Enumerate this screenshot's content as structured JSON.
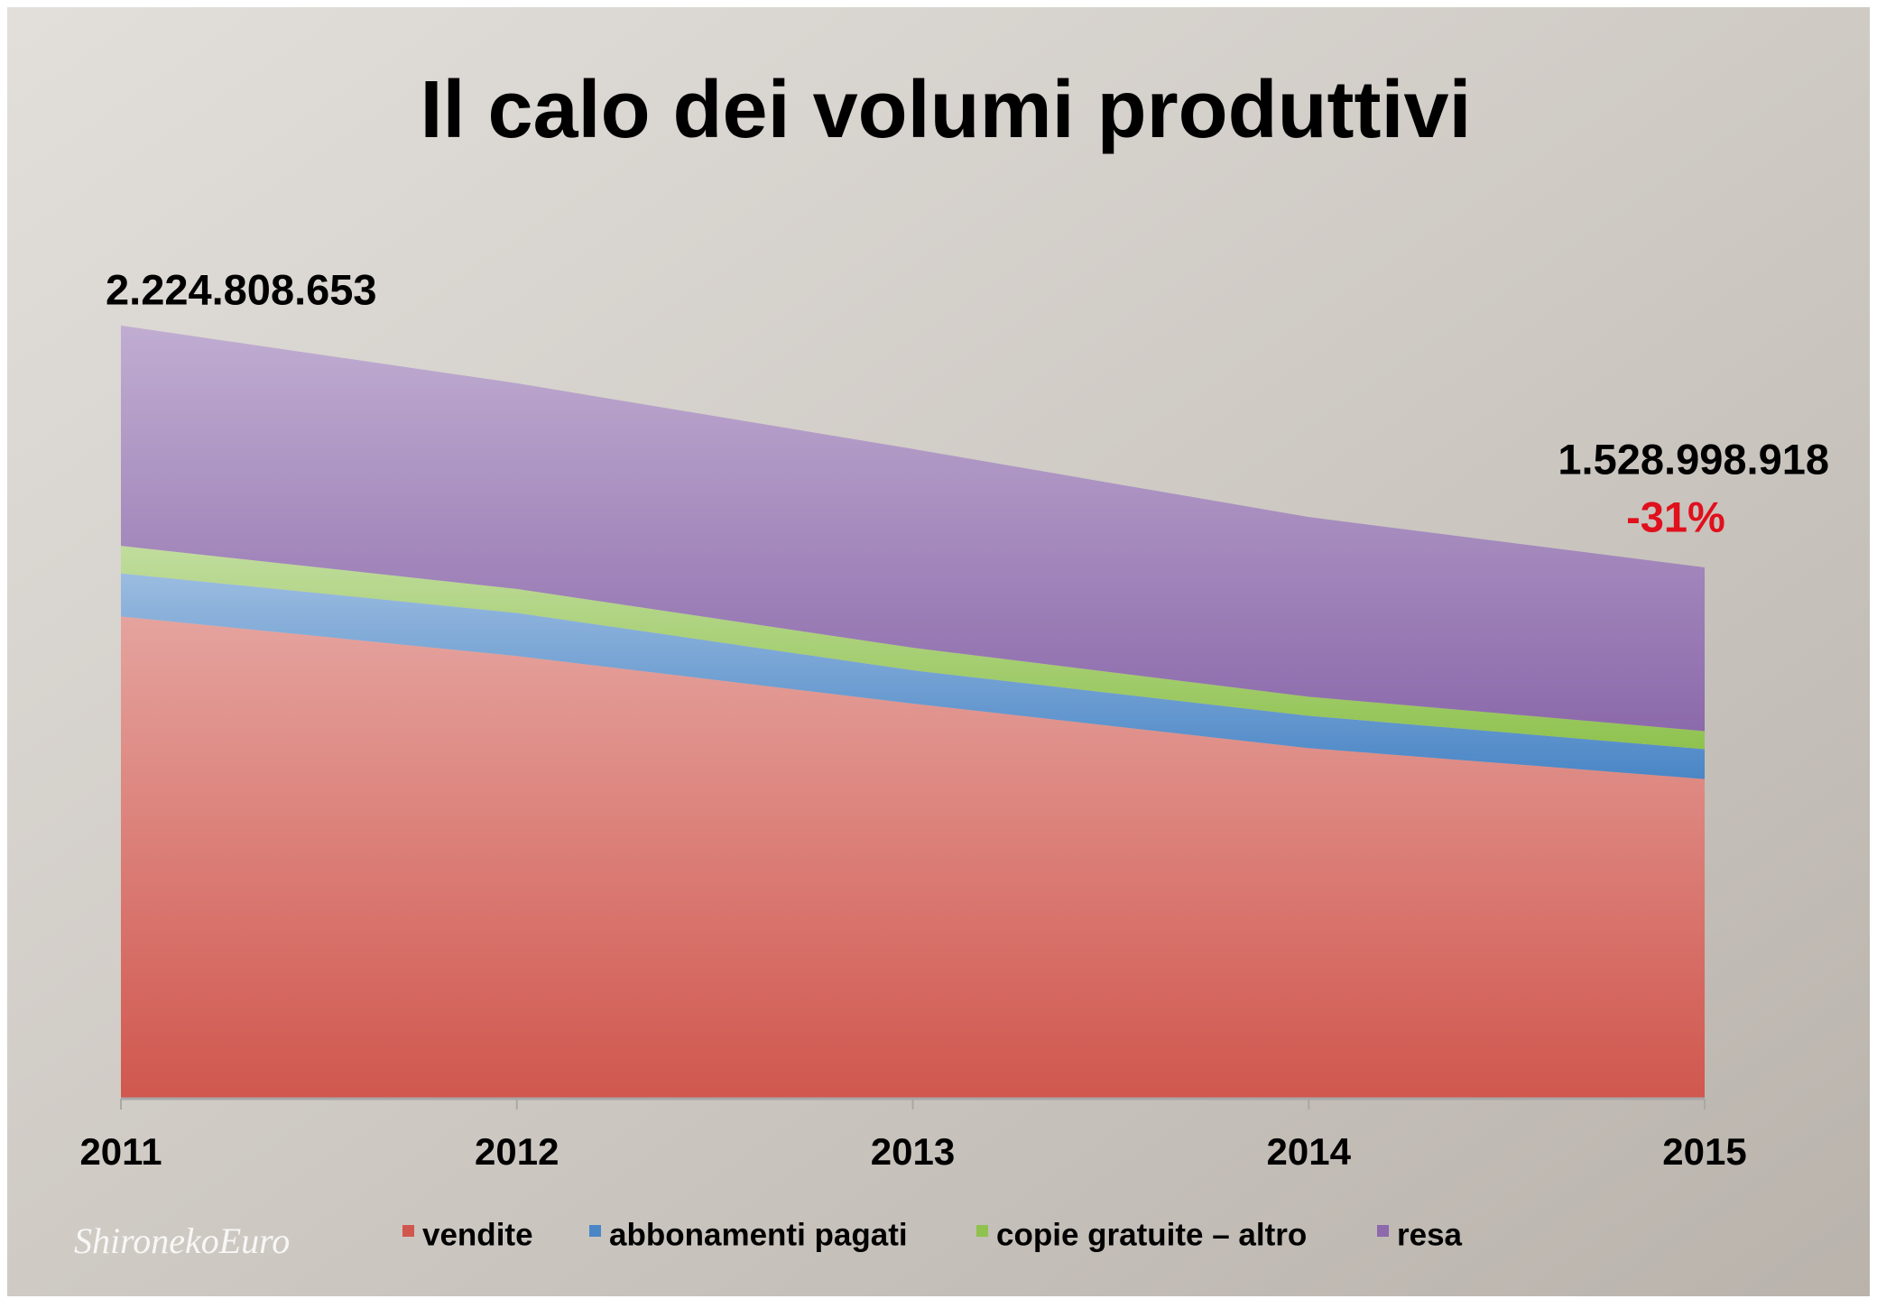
{
  "chart_data": {
    "type": "stacked-area",
    "title": "Il calo dei volumi produttivi",
    "categories": [
      "2011",
      "2012",
      "2013",
      "2014",
      "2015"
    ],
    "series": [
      {
        "name": "vendite",
        "color": "#d0574e",
        "values": [
          1388000000,
          1274000000,
          1137000000,
          1009000000,
          920000000
        ]
      },
      {
        "name": "abbonamenti pagati",
        "color": "#4a86c6",
        "values": [
          124000000,
          124000000,
          96000000,
          93000000,
          86000000
        ]
      },
      {
        "name": "copie gratuite – altro",
        "color": "#8fc24f",
        "values": [
          79000000,
          69000000,
          65000000,
          55000000,
          52000000
        ]
      },
      {
        "name": "resa",
        "color": "#8c6aab",
        "values": [
          634000000,
          592000000,
          572000000,
          517000000,
          471000000
        ]
      }
    ],
    "ylim": [
      0,
      2500000000
    ],
    "annotations": [
      "2.224.808.653",
      "1.528.998.918",
      "-31%"
    ],
    "watermark": "ShironekoEuro"
  }
}
